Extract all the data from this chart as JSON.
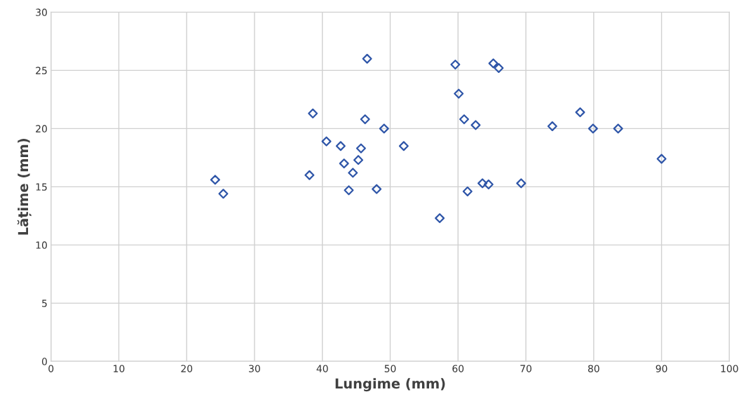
{
  "chart_data": {
    "type": "scatter",
    "xlabel": "Lungime (mm)",
    "ylabel": "Lățime (mm)",
    "x": [
      24.2,
      25.4,
      38.1,
      38.6,
      40.6,
      42.7,
      43.2,
      43.9,
      44.5,
      45.3,
      45.7,
      46.3,
      46.6,
      48.0,
      49.1,
      52.0,
      57.3,
      59.6,
      60.1,
      60.9,
      61.4,
      62.6,
      63.6,
      64.5,
      65.2,
      66.0,
      69.3,
      73.9,
      78.0,
      79.9,
      83.6,
      90.0
    ],
    "series": [
      {
        "color": "#2e55a8",
        "values": [
          15.6,
          14.4,
          16.0,
          21.3,
          18.9,
          18.5,
          17.0,
          14.7,
          16.2,
          17.3,
          18.3,
          20.8,
          26.0,
          14.8,
          20.0,
          18.5,
          12.3,
          25.5,
          23.0,
          20.8,
          14.6,
          20.3,
          15.3,
          15.2,
          25.6,
          25.2,
          15.3,
          20.2,
          21.4,
          20.0,
          20.0,
          17.4
        ]
      }
    ],
    "xlim": [
      0,
      100
    ],
    "xticks": [
      0,
      10,
      20,
      30,
      40,
      50,
      60,
      70,
      80,
      90,
      100
    ],
    "ylim": [
      0,
      30
    ],
    "yticks": [
      0,
      5,
      10,
      15,
      20,
      25,
      30
    ],
    "grid": true,
    "marker": "diamond"
  }
}
